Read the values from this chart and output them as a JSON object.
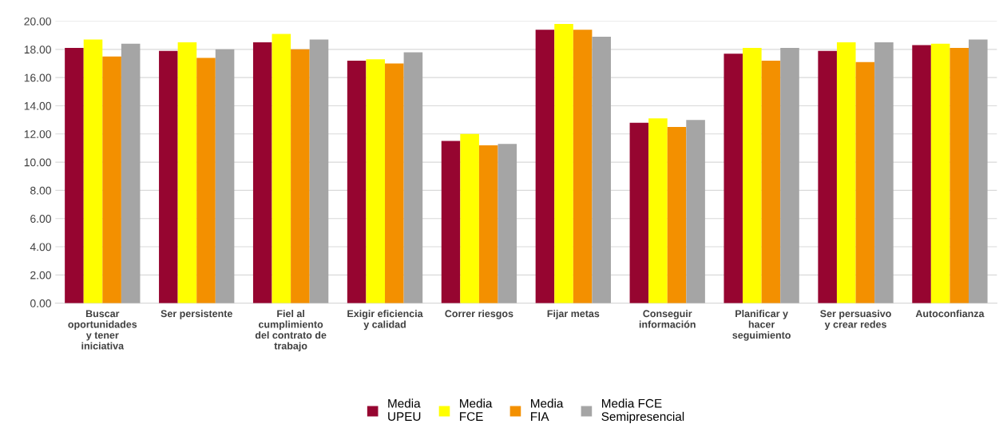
{
  "chart_data": {
    "type": "bar",
    "categories": [
      "Buscar\noportunidades\ny tener\niniciativa",
      "Ser persistente",
      "Fiel al\ncumplimiento\ndel contrato de\ntrabajo",
      "Exigir eficiencia\ny calidad",
      "Correr riesgos",
      "Fijar metas",
      "Conseguir\ninformación",
      "Planificar y\nhacer\nseguimiento",
      "Ser persuasivo\ny crear redes",
      "Autoconfianza"
    ],
    "series": [
      {
        "name": "Media\nUPEU",
        "color": "#960530",
        "values": [
          18.1,
          17.9,
          18.5,
          17.2,
          11.5,
          19.4,
          12.8,
          17.7,
          17.9,
          18.3
        ]
      },
      {
        "name": "Media\nFCE",
        "color": "#ffff00",
        "values": [
          18.7,
          18.5,
          19.1,
          17.3,
          12.0,
          19.8,
          13.1,
          18.1,
          18.5,
          18.4
        ]
      },
      {
        "name": "Media\nFIA",
        "color": "#f39000",
        "values": [
          17.5,
          17.4,
          18.0,
          17.0,
          11.2,
          19.4,
          12.5,
          17.2,
          17.1,
          18.1
        ]
      },
      {
        "name": "Media FCE\nSemipresencial",
        "color": "#a5a5a5",
        "values": [
          18.4,
          18.0,
          18.7,
          17.8,
          11.3,
          18.9,
          13.0,
          18.1,
          18.5,
          18.7
        ]
      }
    ],
    "ylim": [
      0,
      20
    ],
    "yticks": [
      {
        "value": 0,
        "label": "0.00"
      },
      {
        "value": 2,
        "label": "2.00"
      },
      {
        "value": 4,
        "label": "4.00"
      },
      {
        "value": 6,
        "label": "6.00"
      },
      {
        "value": 8,
        "label": "8.00"
      },
      {
        "value": 10,
        "label": "10.00"
      },
      {
        "value": 12,
        "label": "12.00"
      },
      {
        "value": 14,
        "label": "14.00"
      },
      {
        "value": 16,
        "label": "16.00"
      },
      {
        "value": 18,
        "label": "18.00"
      },
      {
        "value": 20,
        "label": "20.00"
      }
    ],
    "grid": "y",
    "legend": "bottom"
  }
}
